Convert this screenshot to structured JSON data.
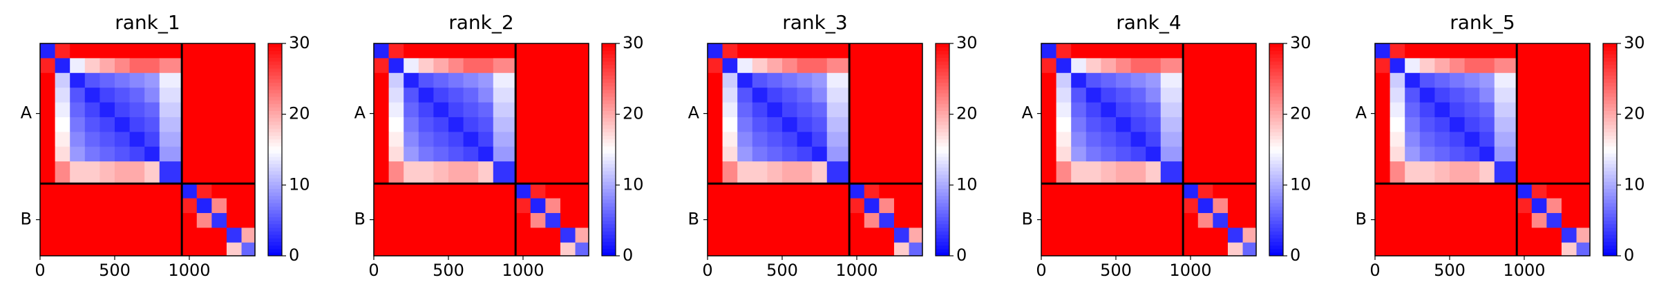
{
  "chart_data": [
    {
      "type": "heatmap",
      "title": "rank_1",
      "bins": [
        0,
        100,
        200,
        300,
        400,
        500,
        600,
        700,
        800,
        950,
        1050,
        1150,
        1250,
        1350,
        1440
      ],
      "xlim": [
        0,
        1440
      ],
      "ylim": [
        1440,
        0
      ],
      "xticks": [
        0,
        500,
        1000
      ],
      "yticks": [
        {
          "value": 475,
          "label": "A"
        },
        {
          "value": 1195,
          "label": "B"
        }
      ],
      "chain_break": 950,
      "clim": [
        0,
        30
      ],
      "cticks": [
        0,
        10,
        20,
        30
      ],
      "cmap": [
        "#0000ff",
        "#ffffff",
        "#ff0000"
      ],
      "z": [
        [
          2,
          28,
          30,
          30,
          30,
          30,
          30,
          30,
          30,
          30,
          30,
          30,
          30,
          30
        ],
        [
          28,
          2,
          14,
          18,
          20,
          22,
          24,
          24,
          22,
          30,
          30,
          30,
          30,
          30
        ],
        [
          30,
          12,
          2,
          5,
          6,
          7,
          8,
          9,
          14,
          30,
          30,
          30,
          30,
          30
        ],
        [
          30,
          13,
          5,
          2,
          4,
          5,
          6,
          8,
          13,
          30,
          30,
          30,
          30,
          30
        ],
        [
          30,
          14,
          6,
          4,
          2,
          4,
          5,
          6,
          12,
          30,
          30,
          30,
          30,
          30
        ],
        [
          30,
          15,
          7,
          5,
          4,
          2,
          4,
          5,
          11,
          30,
          30,
          30,
          30,
          30
        ],
        [
          30,
          16,
          8,
          6,
          5,
          4,
          2,
          4,
          10,
          30,
          30,
          30,
          30,
          30
        ],
        [
          30,
          17,
          9,
          7,
          6,
          5,
          4,
          2,
          9,
          30,
          30,
          30,
          30,
          30
        ],
        [
          30,
          22,
          18,
          18,
          19,
          20,
          20,
          18,
          3,
          30,
          30,
          30,
          30,
          30
        ],
        [
          30,
          30,
          30,
          30,
          30,
          30,
          30,
          30,
          30,
          2,
          28,
          30,
          30,
          30
        ],
        [
          30,
          30,
          30,
          30,
          30,
          30,
          30,
          30,
          30,
          28,
          2,
          22,
          30,
          30
        ],
        [
          30,
          30,
          30,
          30,
          30,
          30,
          30,
          30,
          30,
          30,
          22,
          3,
          30,
          30
        ],
        [
          30,
          30,
          30,
          30,
          30,
          30,
          30,
          30,
          30,
          30,
          30,
          30,
          3,
          20
        ],
        [
          30,
          30,
          30,
          30,
          30,
          30,
          30,
          30,
          30,
          30,
          30,
          30,
          18,
          6
        ]
      ]
    },
    {
      "type": "heatmap",
      "title": "rank_2",
      "bins": [
        0,
        100,
        200,
        300,
        400,
        500,
        600,
        700,
        800,
        950,
        1050,
        1150,
        1250,
        1350,
        1440
      ],
      "xlim": [
        0,
        1440
      ],
      "ylim": [
        1440,
        0
      ],
      "xticks": [
        0,
        500,
        1000
      ],
      "yticks": [
        {
          "value": 475,
          "label": "A"
        },
        {
          "value": 1195,
          "label": "B"
        }
      ],
      "chain_break": 950,
      "clim": [
        0,
        30
      ],
      "cticks": [
        0,
        10,
        20,
        30
      ],
      "cmap": [
        "#0000ff",
        "#ffffff",
        "#ff0000"
      ],
      "z": [
        [
          2,
          28,
          30,
          30,
          30,
          30,
          30,
          30,
          30,
          30,
          30,
          30,
          30,
          30
        ],
        [
          28,
          2,
          14,
          18,
          20,
          22,
          24,
          24,
          22,
          30,
          30,
          30,
          30,
          30
        ],
        [
          30,
          12,
          2,
          5,
          6,
          7,
          8,
          9,
          14,
          30,
          30,
          30,
          30,
          30
        ],
        [
          30,
          13,
          5,
          2,
          4,
          5,
          6,
          8,
          13,
          30,
          30,
          30,
          30,
          30
        ],
        [
          30,
          14,
          6,
          4,
          2,
          4,
          5,
          6,
          12,
          30,
          30,
          30,
          30,
          30
        ],
        [
          30,
          15,
          7,
          5,
          4,
          2,
          4,
          5,
          11,
          30,
          30,
          30,
          30,
          30
        ],
        [
          30,
          16,
          8,
          6,
          5,
          4,
          2,
          4,
          10,
          30,
          30,
          30,
          30,
          30
        ],
        [
          30,
          17,
          9,
          7,
          6,
          5,
          4,
          2,
          9,
          30,
          30,
          30,
          30,
          30
        ],
        [
          30,
          22,
          18,
          18,
          19,
          20,
          20,
          18,
          3,
          30,
          30,
          30,
          30,
          30
        ],
        [
          30,
          30,
          30,
          30,
          30,
          30,
          30,
          30,
          30,
          2,
          28,
          30,
          30,
          30
        ],
        [
          30,
          30,
          30,
          30,
          30,
          30,
          30,
          30,
          30,
          28,
          2,
          22,
          30,
          30
        ],
        [
          30,
          30,
          30,
          30,
          30,
          30,
          30,
          30,
          30,
          30,
          22,
          3,
          30,
          30
        ],
        [
          30,
          30,
          30,
          30,
          30,
          30,
          30,
          30,
          30,
          30,
          30,
          30,
          3,
          20
        ],
        [
          30,
          30,
          30,
          30,
          30,
          30,
          30,
          30,
          30,
          30,
          30,
          30,
          18,
          6
        ]
      ]
    },
    {
      "type": "heatmap",
      "title": "rank_3",
      "bins": [
        0,
        100,
        200,
        300,
        400,
        500,
        600,
        700,
        800,
        950,
        1050,
        1150,
        1250,
        1350,
        1440
      ],
      "xlim": [
        0,
        1440
      ],
      "ylim": [
        1440,
        0
      ],
      "xticks": [
        0,
        500,
        1000
      ],
      "yticks": [
        {
          "value": 475,
          "label": "A"
        },
        {
          "value": 1195,
          "label": "B"
        }
      ],
      "chain_break": 950,
      "clim": [
        0,
        30
      ],
      "cticks": [
        0,
        10,
        20,
        30
      ],
      "cmap": [
        "#0000ff",
        "#ffffff",
        "#ff0000"
      ],
      "z": [
        [
          2,
          28,
          30,
          30,
          30,
          30,
          30,
          30,
          30,
          30,
          30,
          30,
          30,
          30
        ],
        [
          28,
          2,
          14,
          18,
          20,
          22,
          24,
          24,
          22,
          30,
          30,
          30,
          30,
          30
        ],
        [
          30,
          12,
          2,
          5,
          6,
          7,
          8,
          9,
          14,
          30,
          30,
          30,
          30,
          30
        ],
        [
          30,
          13,
          5,
          2,
          4,
          5,
          6,
          8,
          13,
          30,
          30,
          30,
          30,
          30
        ],
        [
          30,
          14,
          6,
          4,
          2,
          4,
          5,
          6,
          12,
          30,
          30,
          30,
          30,
          30
        ],
        [
          30,
          15,
          7,
          5,
          4,
          2,
          4,
          5,
          11,
          30,
          30,
          30,
          30,
          30
        ],
        [
          30,
          16,
          8,
          6,
          5,
          4,
          2,
          4,
          10,
          30,
          30,
          30,
          30,
          30
        ],
        [
          30,
          17,
          9,
          7,
          6,
          5,
          4,
          2,
          9,
          30,
          30,
          30,
          30,
          30
        ],
        [
          30,
          22,
          18,
          18,
          19,
          20,
          20,
          18,
          3,
          30,
          30,
          30,
          30,
          30
        ],
        [
          30,
          30,
          30,
          30,
          30,
          30,
          30,
          30,
          30,
          2,
          28,
          30,
          30,
          30
        ],
        [
          30,
          30,
          30,
          30,
          30,
          30,
          30,
          30,
          30,
          28,
          2,
          22,
          30,
          30
        ],
        [
          30,
          30,
          30,
          30,
          30,
          30,
          30,
          30,
          30,
          30,
          22,
          3,
          30,
          30
        ],
        [
          30,
          30,
          30,
          30,
          30,
          30,
          30,
          30,
          30,
          30,
          30,
          30,
          3,
          20
        ],
        [
          30,
          30,
          30,
          30,
          30,
          30,
          30,
          30,
          30,
          30,
          30,
          30,
          18,
          6
        ]
      ]
    },
    {
      "type": "heatmap",
      "title": "rank_4",
      "bins": [
        0,
        100,
        200,
        300,
        400,
        500,
        600,
        700,
        800,
        950,
        1050,
        1150,
        1250,
        1350,
        1440
      ],
      "xlim": [
        0,
        1440
      ],
      "ylim": [
        1440,
        0
      ],
      "xticks": [
        0,
        500,
        1000
      ],
      "yticks": [
        {
          "value": 475,
          "label": "A"
        },
        {
          "value": 1195,
          "label": "B"
        }
      ],
      "chain_break": 950,
      "clim": [
        0,
        30
      ],
      "cticks": [
        0,
        10,
        20,
        30
      ],
      "cmap": [
        "#0000ff",
        "#ffffff",
        "#ff0000"
      ],
      "z": [
        [
          2,
          28,
          30,
          30,
          30,
          30,
          30,
          30,
          30,
          30,
          30,
          30,
          30,
          30
        ],
        [
          28,
          2,
          14,
          18,
          20,
          22,
          24,
          24,
          22,
          30,
          30,
          30,
          30,
          30
        ],
        [
          30,
          12,
          2,
          5,
          6,
          7,
          8,
          9,
          14,
          30,
          30,
          30,
          30,
          30
        ],
        [
          30,
          13,
          5,
          2,
          4,
          5,
          6,
          8,
          13,
          30,
          30,
          30,
          30,
          30
        ],
        [
          30,
          14,
          6,
          4,
          2,
          4,
          5,
          6,
          12,
          30,
          30,
          30,
          30,
          30
        ],
        [
          30,
          15,
          7,
          5,
          4,
          2,
          4,
          5,
          11,
          30,
          30,
          30,
          30,
          30
        ],
        [
          30,
          16,
          8,
          6,
          5,
          4,
          2,
          4,
          10,
          30,
          30,
          30,
          30,
          30
        ],
        [
          30,
          17,
          9,
          7,
          6,
          5,
          4,
          2,
          9,
          30,
          30,
          30,
          30,
          30
        ],
        [
          30,
          22,
          18,
          18,
          19,
          20,
          20,
          18,
          3,
          30,
          30,
          30,
          30,
          30
        ],
        [
          30,
          30,
          30,
          30,
          30,
          30,
          30,
          30,
          30,
          2,
          28,
          30,
          30,
          30
        ],
        [
          30,
          30,
          30,
          30,
          30,
          30,
          30,
          30,
          30,
          28,
          2,
          22,
          30,
          30
        ],
        [
          30,
          30,
          30,
          30,
          30,
          30,
          30,
          30,
          30,
          30,
          22,
          3,
          30,
          30
        ],
        [
          30,
          30,
          30,
          30,
          30,
          30,
          30,
          30,
          30,
          30,
          30,
          30,
          3,
          20
        ],
        [
          30,
          30,
          30,
          30,
          30,
          30,
          30,
          30,
          30,
          30,
          30,
          30,
          18,
          6
        ]
      ]
    },
    {
      "type": "heatmap",
      "title": "rank_5",
      "bins": [
        0,
        100,
        200,
        300,
        400,
        500,
        600,
        700,
        800,
        950,
        1050,
        1150,
        1250,
        1350,
        1440
      ],
      "xlim": [
        0,
        1440
      ],
      "ylim": [
        1440,
        0
      ],
      "xticks": [
        0,
        500,
        1000
      ],
      "yticks": [
        {
          "value": 475,
          "label": "A"
        },
        {
          "value": 1195,
          "label": "B"
        }
      ],
      "chain_break": 950,
      "clim": [
        0,
        30
      ],
      "cticks": [
        0,
        10,
        20,
        30
      ],
      "cmap": [
        "#0000ff",
        "#ffffff",
        "#ff0000"
      ],
      "z": [
        [
          2,
          28,
          30,
          30,
          30,
          30,
          30,
          30,
          30,
          30,
          30,
          30,
          30,
          30
        ],
        [
          28,
          2,
          14,
          18,
          20,
          22,
          24,
          24,
          22,
          30,
          30,
          30,
          30,
          30
        ],
        [
          30,
          12,
          2,
          5,
          6,
          7,
          8,
          9,
          14,
          30,
          30,
          30,
          30,
          30
        ],
        [
          30,
          13,
          5,
          2,
          4,
          5,
          6,
          8,
          13,
          30,
          30,
          30,
          30,
          30
        ],
        [
          30,
          14,
          6,
          4,
          2,
          4,
          5,
          6,
          12,
          30,
          30,
          30,
          30,
          30
        ],
        [
          30,
          15,
          7,
          5,
          4,
          2,
          4,
          5,
          11,
          30,
          30,
          30,
          30,
          30
        ],
        [
          30,
          16,
          8,
          6,
          5,
          4,
          2,
          4,
          10,
          30,
          30,
          30,
          30,
          30
        ],
        [
          30,
          17,
          9,
          7,
          6,
          5,
          4,
          2,
          9,
          30,
          30,
          30,
          30,
          30
        ],
        [
          30,
          22,
          18,
          18,
          19,
          20,
          20,
          18,
          3,
          30,
          30,
          30,
          30,
          30
        ],
        [
          30,
          30,
          30,
          30,
          30,
          30,
          30,
          30,
          30,
          2,
          28,
          30,
          30,
          30
        ],
        [
          30,
          30,
          30,
          30,
          30,
          30,
          30,
          30,
          30,
          28,
          2,
          22,
          30,
          30
        ],
        [
          30,
          30,
          30,
          30,
          30,
          30,
          30,
          30,
          30,
          30,
          22,
          3,
          30,
          30
        ],
        [
          30,
          30,
          30,
          30,
          30,
          30,
          30,
          30,
          30,
          30,
          30,
          30,
          3,
          20
        ],
        [
          30,
          30,
          30,
          30,
          30,
          30,
          30,
          30,
          30,
          30,
          30,
          30,
          18,
          6
        ]
      ]
    }
  ]
}
